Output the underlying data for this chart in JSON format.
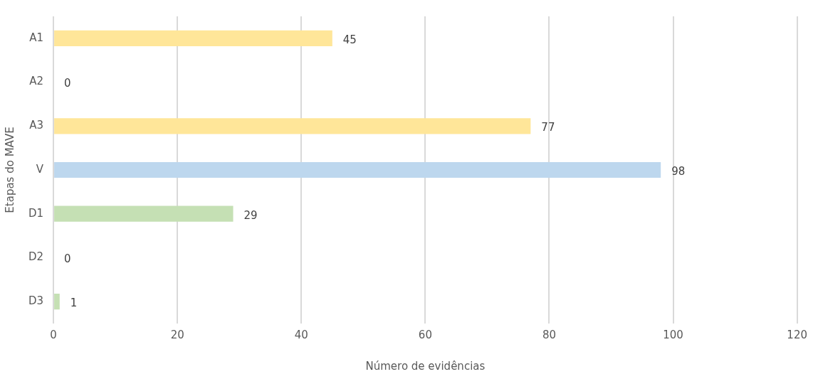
{
  "chart_data": {
    "type": "bar",
    "orientation": "horizontal",
    "xlabel": "Número de evidências",
    "ylabel": "Etapas do MAVE",
    "categories": [
      "A1",
      "A2",
      "A3",
      "V",
      "D1",
      "D2",
      "D3"
    ],
    "values": [
      45,
      0,
      77,
      98,
      29,
      0,
      1
    ],
    "colors": [
      "#ffe699",
      "#ffe699",
      "#ffe699",
      "#bdd7ee",
      "#c5e0b4",
      "#c5e0b4",
      "#c5e0b4"
    ],
    "xlim": [
      0,
      120
    ],
    "xticks": [
      0,
      20,
      40,
      60,
      80,
      100,
      120
    ],
    "grid": "x",
    "legend": false,
    "data_labels": true
  }
}
